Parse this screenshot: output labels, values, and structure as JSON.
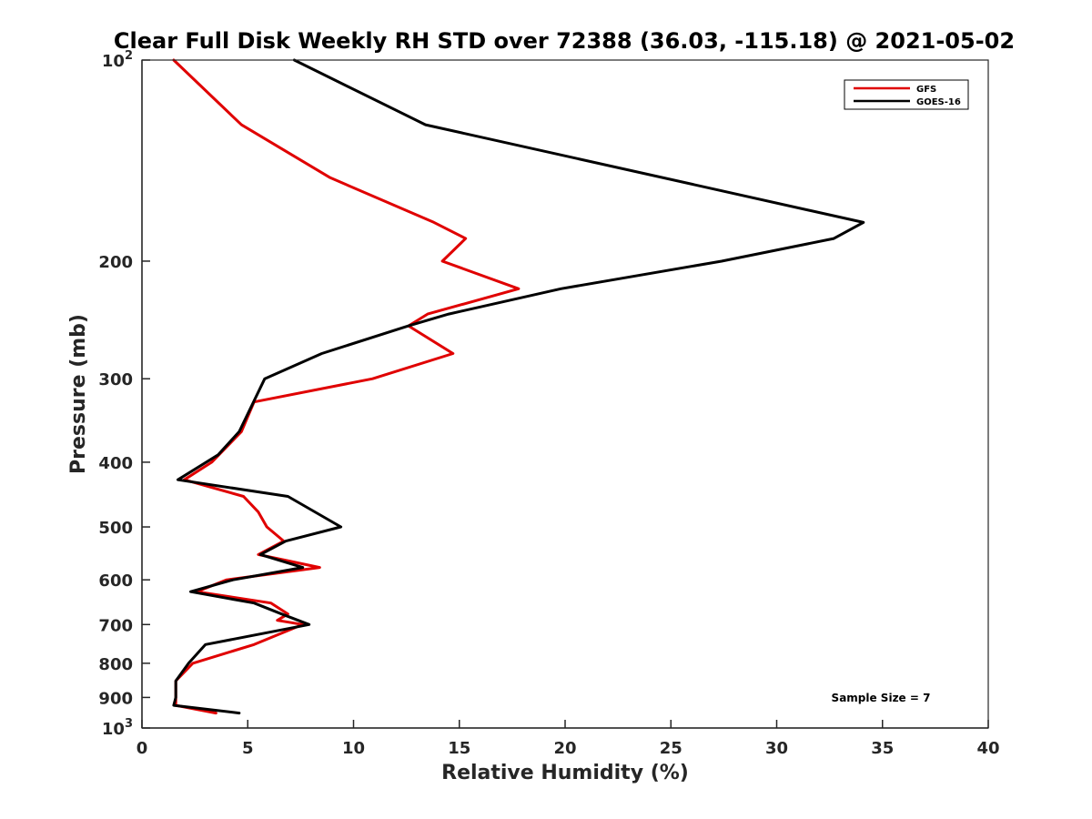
{
  "chart_data": {
    "type": "line",
    "title": "Clear Full Disk Weekly RH STD over 72388 (36.03, -115.18) @ 2021-05-02",
    "xlabel": "Relative Humidity (%)",
    "ylabel": "Pressure (mb)",
    "xlim": [
      0,
      40
    ],
    "ylim": [
      100,
      1000
    ],
    "y_scale": "log",
    "y_reversed": true,
    "grid": false,
    "legend_position": "top-right",
    "x_ticks": [
      "0",
      "5",
      "10",
      "15",
      "20",
      "25",
      "30",
      "35",
      "40"
    ],
    "y_ticks": [
      {
        "value": 100,
        "base": "10",
        "exp": "2"
      },
      {
        "value": 200,
        "label": "200"
      },
      {
        "value": 300,
        "label": "300"
      },
      {
        "value": 400,
        "label": "400"
      },
      {
        "value": 500,
        "label": "500"
      },
      {
        "value": 600,
        "label": "600"
      },
      {
        "value": 700,
        "label": "700"
      },
      {
        "value": 800,
        "label": "800"
      },
      {
        "value": 900,
        "label": "900"
      },
      {
        "value": 1000,
        "base": "10",
        "exp": "3"
      }
    ],
    "series": [
      {
        "name": "GFS",
        "color": "#e00000",
        "points": [
          [
            1.5,
            100
          ],
          [
            4.7,
            125
          ],
          [
            8.9,
            150
          ],
          [
            13.8,
            175
          ],
          [
            15.3,
            185
          ],
          [
            14.2,
            200
          ],
          [
            17.8,
            220
          ],
          [
            13.5,
            240
          ],
          [
            12.6,
            250
          ],
          [
            14.7,
            275
          ],
          [
            10.9,
            300
          ],
          [
            5.3,
            325
          ],
          [
            4.7,
            360
          ],
          [
            3.3,
            400
          ],
          [
            2.0,
            425
          ],
          [
            4.8,
            450
          ],
          [
            5.5,
            475
          ],
          [
            5.9,
            500
          ],
          [
            6.7,
            525
          ],
          [
            5.5,
            550
          ],
          [
            8.4,
            575
          ],
          [
            4.0,
            600
          ],
          [
            2.6,
            625
          ],
          [
            6.1,
            650
          ],
          [
            6.9,
            675
          ],
          [
            6.4,
            690
          ],
          [
            7.6,
            700
          ],
          [
            5.3,
            750
          ],
          [
            2.4,
            800
          ],
          [
            1.6,
            850
          ],
          [
            1.6,
            900
          ],
          [
            1.6,
            925
          ],
          [
            3.5,
            950
          ]
        ]
      },
      {
        "name": "GOES-16",
        "color": "#000000",
        "points": [
          [
            7.2,
            100
          ],
          [
            13.4,
            125
          ],
          [
            34.1,
            175
          ],
          [
            32.7,
            185
          ],
          [
            27.4,
            200
          ],
          [
            19.8,
            220
          ],
          [
            14.5,
            240
          ],
          [
            12.6,
            250
          ],
          [
            8.5,
            275
          ],
          [
            5.8,
            300
          ],
          [
            4.6,
            360
          ],
          [
            3.6,
            390
          ],
          [
            1.7,
            425
          ],
          [
            6.9,
            450
          ],
          [
            9.4,
            500
          ],
          [
            6.8,
            525
          ],
          [
            5.6,
            550
          ],
          [
            7.6,
            575
          ],
          [
            4.3,
            600
          ],
          [
            2.3,
            625
          ],
          [
            5.3,
            650
          ],
          [
            6.6,
            675
          ],
          [
            7.9,
            700
          ],
          [
            3.0,
            750
          ],
          [
            2.2,
            800
          ],
          [
            1.6,
            850
          ],
          [
            1.6,
            900
          ],
          [
            1.5,
            925
          ],
          [
            4.6,
            950
          ]
        ]
      }
    ],
    "annotations": [
      "Sample Size = 7"
    ]
  }
}
